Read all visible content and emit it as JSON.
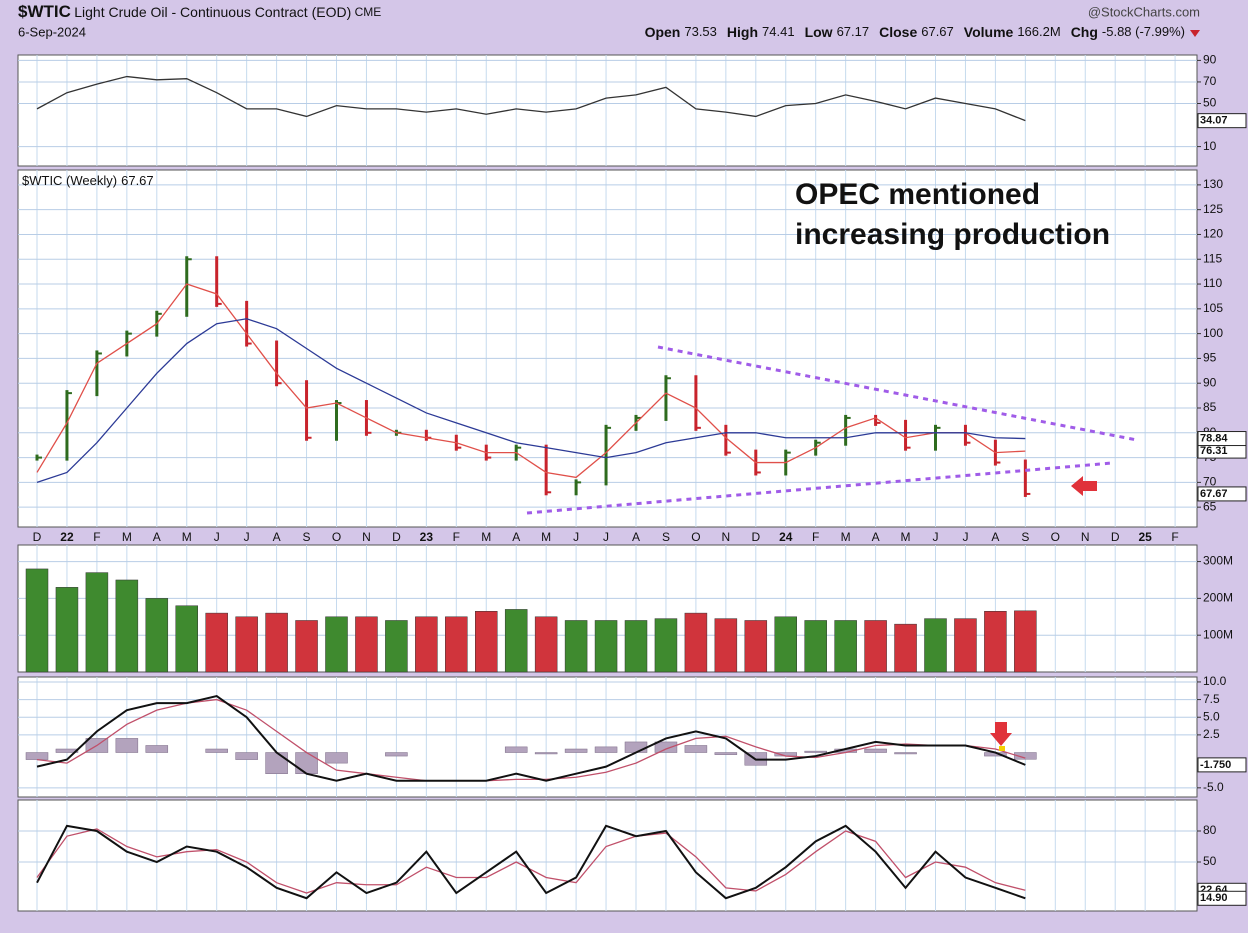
{
  "header": {
    "symbol": "$WTIC",
    "name": "Light Crude Oil - Continuous Contract (EOD)",
    "exchange": "CME",
    "date": "6-Sep-2024",
    "source": "@StockCharts.com",
    "quote": [
      {
        "label": "Open",
        "value": 73.53
      },
      {
        "label": "High",
        "value": 74.41
      },
      {
        "label": "Low",
        "value": 67.17
      },
      {
        "label": "Close",
        "value": 67.67
      },
      {
        "label": "Volume",
        "value": "166.2M"
      },
      {
        "label": "Chg",
        "value": "-5.88 (-7.99%)"
      }
    ]
  },
  "chart_data": [
    {
      "type": "line",
      "ylim": [
        -8,
        95
      ],
      "yticks": [
        10,
        50,
        70,
        90
      ],
      "grid": true,
      "series": [
        {
          "color": "#333333",
          "show_last": true,
          "values": [
            45,
            60,
            68,
            75,
            72,
            73,
            60,
            45,
            45,
            38,
            48,
            45,
            45,
            42,
            45,
            40,
            45,
            42,
            45,
            55,
            58,
            65,
            45,
            42,
            38,
            48,
            50,
            58,
            52,
            45,
            55,
            50,
            45,
            34.07,
            null,
            null,
            null,
            null,
            null
          ]
        }
      ]
    },
    {
      "type": "line",
      "title": "$WTIC (Weekly)",
      "ylim": [
        61,
        133
      ],
      "yticks": [
        65,
        70,
        75,
        80,
        85,
        90,
        95,
        100,
        105,
        110,
        115,
        120,
        125,
        130
      ],
      "grid": true,
      "categories": [
        "D",
        "22",
        "F",
        "M",
        "A",
        "M",
        "J",
        "J",
        "A",
        "S",
        "O",
        "N",
        "D",
        "23",
        "F",
        "M",
        "A",
        "M",
        "J",
        "J",
        "A",
        "S",
        "O",
        "N",
        "D",
        "24",
        "F",
        "M",
        "A",
        "M",
        "J",
        "J",
        "A",
        "S",
        "O",
        "N",
        "D",
        "25",
        "F"
      ],
      "annotation": [
        "OPEC mentioned",
        "increasing production"
      ],
      "annotation_color": "#9b4de6",
      "series": [
        {
          "style": "price",
          "up_color": "#2e6b1e",
          "down_color": "#c8232c",
          "show_last": true,
          "values": [
            75,
            88,
            96,
            100,
            104,
            115,
            106,
            98,
            90,
            79,
            86,
            80,
            80,
            79,
            77,
            75,
            77,
            68,
            70,
            81,
            83,
            91,
            81,
            76,
            72,
            76,
            78,
            83,
            82,
            77,
            81,
            78,
            74,
            67.67,
            null,
            null,
            null,
            null,
            null
          ]
        },
        {
          "color": "#e0504a",
          "show_last": true,
          "values": [
            72,
            82,
            94,
            98,
            102,
            110,
            108,
            100,
            92,
            85,
            86,
            83,
            80,
            79,
            78,
            76,
            76,
            72,
            71,
            76,
            82,
            88,
            85,
            79,
            74,
            74,
            77,
            81,
            83,
            79,
            80,
            80,
            76,
            76.31,
            null,
            null,
            null,
            null,
            null
          ]
        },
        {
          "color": "#2c3a96",
          "show_last": true,
          "values": [
            70,
            72,
            78,
            85,
            92,
            98,
            102,
            103,
            101,
            97,
            93,
            90,
            87,
            84,
            82,
            80,
            78,
            77,
            76,
            75,
            76,
            78,
            79,
            80,
            80,
            79,
            79,
            79,
            80,
            80,
            80,
            80,
            79,
            78.84,
            null,
            null,
            null,
            null,
            null
          ]
        }
      ]
    },
    {
      "type": "bar",
      "ylim": [
        0,
        345
      ],
      "yticks": [
        {
          "value": 100,
          "label": "100M"
        },
        {
          "value": 200,
          "label": "200M"
        },
        {
          "value": 300,
          "label": "300M"
        }
      ],
      "grid": true,
      "up_color": "#3f8a2f",
      "down_color": "#d0343c",
      "values": [
        280,
        230,
        270,
        250,
        200,
        180,
        160,
        150,
        160,
        140,
        150,
        150,
        140,
        150,
        150,
        165,
        170,
        150,
        140,
        140,
        140,
        145,
        160,
        145,
        140,
        150,
        140,
        140,
        140,
        130,
        145,
        145,
        165,
        166.2,
        null,
        null,
        null,
        null,
        null
      ]
    },
    {
      "type": "line",
      "ylim": [
        -6.3,
        10.7
      ],
      "yticks": [
        {
          "value": -5,
          "label": "-5.0"
        },
        2.5,
        {
          "value": 5,
          "label": "5.0"
        },
        7.5,
        {
          "value": 10,
          "label": "10.0"
        }
      ],
      "grid": true,
      "series": [
        {
          "style": "bar",
          "color": "#b3a3bd",
          "values": [
            -1,
            0.5,
            2,
            2,
            1,
            0,
            0.5,
            -1,
            -3,
            -3,
            -1.5,
            0,
            -0.5,
            0,
            0,
            0,
            0.8,
            -0.2,
            0.5,
            0.8,
            1.5,
            1.5,
            1,
            -0.3,
            -1.8,
            -0.5,
            0.2,
            0.5,
            0.5,
            -0.2,
            0,
            0,
            -0.5,
            -0.95,
            null,
            null,
            null,
            null,
            null
          ]
        },
        {
          "color": "#c0506a",
          "values": [
            -1,
            -1.5,
            1,
            4,
            6,
            7,
            7.5,
            6,
            3,
            0,
            -2.5,
            -3,
            -3.5,
            -4,
            -4,
            -4,
            -3.8,
            -3.8,
            -3.5,
            -2.8,
            -1.5,
            0.5,
            2,
            2.3,
            0.8,
            -0.5,
            -0.7,
            0,
            1,
            1.2,
            1,
            1,
            0.5,
            -0.8,
            null,
            null,
            null,
            null,
            null
          ]
        },
        {
          "color": "#111111",
          "width": 2,
          "show_last": true,
          "values": [
            -2,
            -1,
            3,
            6,
            7,
            7,
            8,
            5,
            0,
            -3,
            -4,
            -3,
            -4,
            -4,
            -4,
            -4,
            -3,
            -4,
            -3,
            -2,
            0,
            2,
            3,
            2,
            -1,
            -1,
            -0.5,
            0.5,
            1.5,
            1,
            1,
            1,
            0,
            -1.75,
            null,
            null,
            null,
            null,
            null
          ],
          "value_labels": [
            null,
            null,
            null,
            null,
            null,
            null,
            null,
            null,
            null,
            null,
            null,
            null,
            null,
            null,
            null,
            null,
            null,
            null,
            null,
            null,
            null,
            null,
            null,
            null,
            null,
            null,
            null,
            null,
            null,
            null,
            null,
            null,
            null,
            "-1.750",
            null,
            null,
            null,
            null,
            null
          ]
        }
      ]
    },
    {
      "type": "line",
      "ylim": [
        2.6,
        110
      ],
      "yticks": [
        50,
        80
      ],
      "grid": true,
      "series": [
        {
          "color": "#c0506a",
          "show_last": true,
          "values": [
            35,
            75,
            82,
            65,
            55,
            60,
            62,
            50,
            30,
            20,
            30,
            28,
            28,
            45,
            35,
            35,
            50,
            35,
            30,
            65,
            75,
            78,
            55,
            25,
            22,
            38,
            60,
            80,
            70,
            35,
            50,
            45,
            30,
            22.64,
            null,
            null,
            null,
            null,
            null
          ]
        },
        {
          "color": "#111111",
          "width": 2,
          "show_last": true,
          "values": [
            30,
            85,
            80,
            60,
            50,
            65,
            60,
            45,
            25,
            15,
            40,
            20,
            30,
            60,
            20,
            40,
            60,
            20,
            35,
            85,
            75,
            80,
            40,
            15,
            25,
            45,
            70,
            85,
            60,
            25,
            60,
            35,
            25,
            14.9,
            null,
            null,
            null,
            null,
            null
          ],
          "value_labels": [
            null,
            null,
            null,
            null,
            null,
            null,
            null,
            null,
            null,
            null,
            null,
            null,
            null,
            null,
            null,
            null,
            null,
            null,
            null,
            null,
            null,
            null,
            null,
            null,
            null,
            null,
            null,
            null,
            null,
            null,
            null,
            null,
            null,
            "14.90",
            null,
            null,
            null,
            null,
            null
          ]
        }
      ]
    }
  ]
}
